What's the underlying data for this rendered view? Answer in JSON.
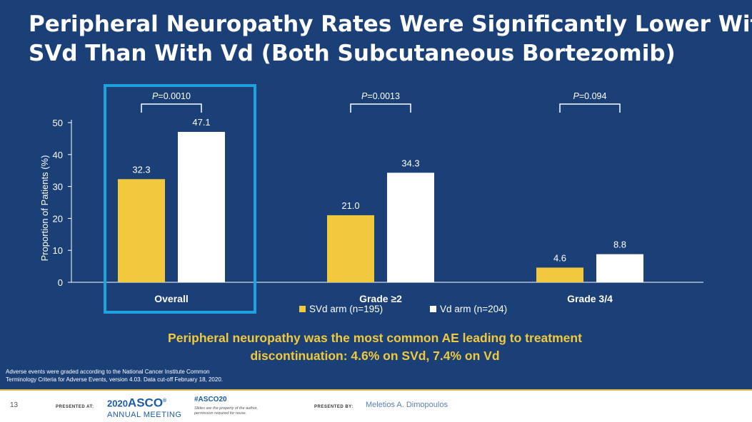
{
  "title_lines": [
    "Peripheral Neuropathy Rates Were Significantly Lower With",
    "SVd Than With Vd (Both Subcutaneous Bortezomib)"
  ],
  "chart_data": {
    "type": "bar",
    "ylabel": "Proportion of Patients (%)",
    "ylim": [
      0,
      50
    ],
    "yticks": [
      0,
      10,
      20,
      30,
      40,
      50
    ],
    "categories": [
      "Overall",
      "Grade ≥2",
      "Grade 3/4"
    ],
    "series": [
      {
        "name": "SVd arm (n=195)",
        "color": "#f0c93c",
        "values": [
          32.3,
          21.0,
          4.6
        ],
        "labels": [
          "32.3",
          "21.0",
          "4.6"
        ]
      },
      {
        "name": "Vd arm (n=204)",
        "color": "#ffffff",
        "values": [
          47.1,
          34.3,
          8.8
        ],
        "labels": [
          "47.1",
          "34.3",
          "8.8"
        ]
      }
    ],
    "p_values": [
      "0.0010",
      "0.0013",
      "0.094"
    ],
    "p_prefix": "P",
    "highlighted_category": "Overall",
    "highlight_color": "#1fa3e0"
  },
  "takeaway_lines": [
    "Peripheral neuropathy was the most common AE leading to treatment",
    "discontinuation: 4.6% on SVd, 7.4% on Vd"
  ],
  "footnote_lines": [
    "Adverse events were graded according to the National Cancer Institute Common",
    "Terminology Criteria for Adverse Events, version 4.03. Data cut-off February 18, 2020."
  ],
  "footer": {
    "slide_number": "13",
    "presented_at": "PRESENTED AT:",
    "logo_year": "2020",
    "logo_name": "ASCO",
    "logo_reg": "®",
    "logo_sub": "ANNUAL MEETING",
    "hashtag": "#ASCO20",
    "disclaimer_lines": [
      "Slides are the property of the author,",
      "permission required for reuse."
    ],
    "presented_by": "PRESENTED BY:",
    "presenter": "Meletios A. Dimopoulos"
  }
}
